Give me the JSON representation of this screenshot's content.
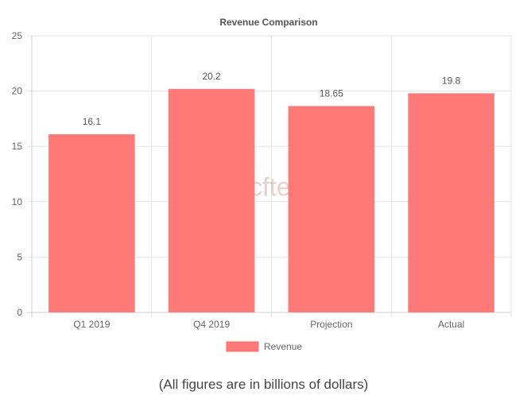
{
  "chart_data": {
    "type": "bar",
    "title": "Revenue Comparison",
    "categories": [
      "Q1 2019",
      "Q4 2019",
      "Projection",
      "Actual"
    ],
    "series": [
      {
        "name": "Revenue",
        "values": [
          16.1,
          20.2,
          18.65,
          19.8
        ],
        "color": "#ff7a77"
      }
    ],
    "data_labels": [
      "16.1",
      "20.2",
      "18.65",
      "19.8"
    ],
    "y_ticks": [
      "0",
      "5",
      "10",
      "15",
      "20",
      "25"
    ],
    "ylim": [
      0,
      25
    ],
    "grid": true,
    "legend_position": "bottom",
    "watermark": "wccftech"
  },
  "footnote": "(All figures are in billions of dollars)"
}
